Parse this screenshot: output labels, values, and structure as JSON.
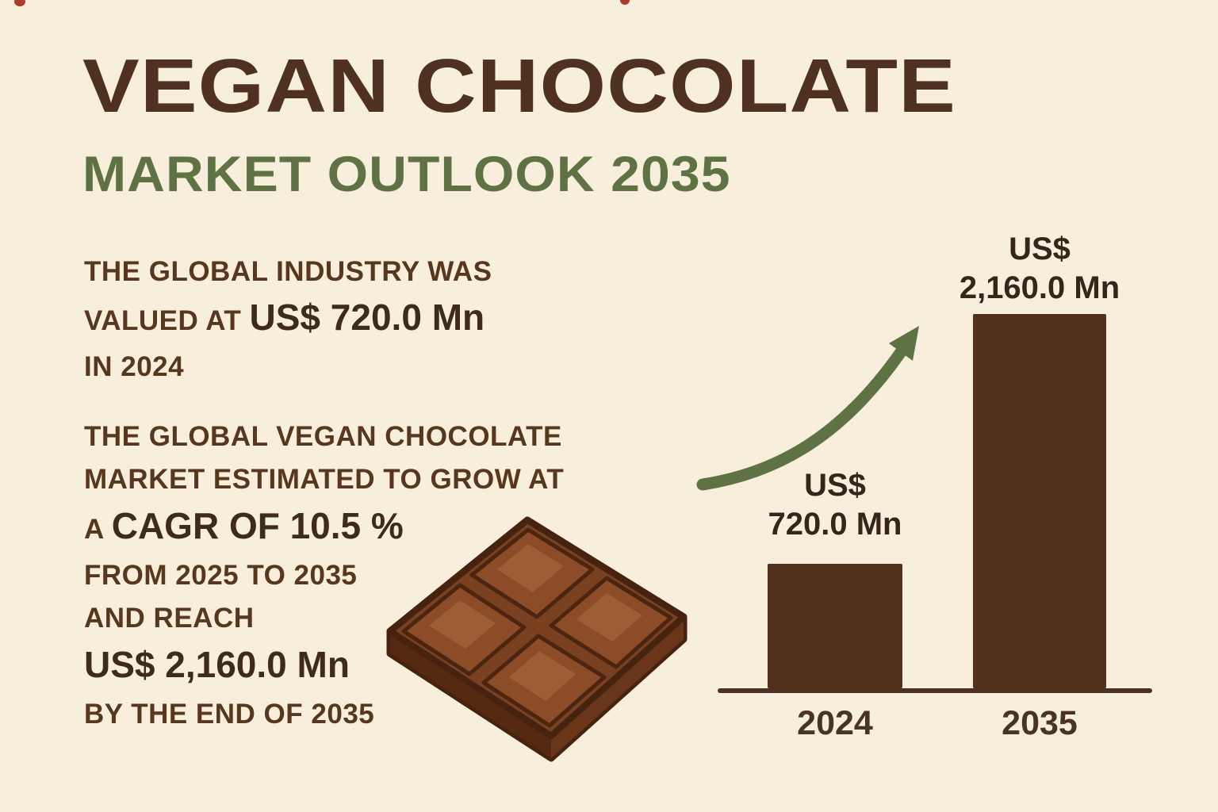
{
  "colors": {
    "background": "#f7eedb",
    "title_brown": "#4e3121",
    "accent_green": "#5e7243",
    "body_brown": "#57381f",
    "value_brown": "#3f2b1a",
    "bar_brown": "#52301c",
    "chocolate_mid": "#8d4c28"
  },
  "title": "VEGAN CHOCOLATE",
  "subtitle": "MARKET OUTLOOK 2035",
  "fact1": {
    "line1": "THE GLOBAL INDUSTRY WAS",
    "line2_text": "VALUED AT",
    "line2_value": "US$ 720.0 Mn",
    "line3": "IN 2024"
  },
  "fact2": {
    "line1": "THE GLOBAL VEGAN CHOCOLATE",
    "line2": "MARKET ESTIMATED TO GROW AT",
    "line3_text": "A",
    "line3_value": "CAGR OF 10.5 %",
    "line4": "FROM 2025 TO 2035",
    "line5": "AND REACH",
    "line6_value": "US$ 2,160.0 Mn",
    "line7": "BY THE END OF 2035"
  },
  "chart_data": {
    "type": "bar",
    "categories": [
      "2024",
      "2035"
    ],
    "values": [
      720.0,
      2160.0
    ],
    "unit": "US$ Mn",
    "bar_labels": [
      [
        "US$",
        "720.0 Mn"
      ],
      [
        "US$",
        "2,160.0 Mn"
      ]
    ],
    "title": "",
    "xlabel": "",
    "ylabel": "",
    "ylim": [
      0,
      2400
    ],
    "grid": false,
    "legend": "none",
    "bar_color": "#52301c"
  }
}
